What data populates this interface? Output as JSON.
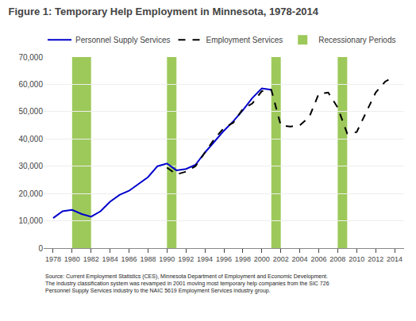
{
  "chart_data": {
    "type": "line",
    "title": "Figure 1: Temporary Help Employment in Minnesota, 1978-2014",
    "source": "Source: Current Employment Statistics (CES), Minnesota Department of Employment and Economic Development.\nThe industry classification system was revamped in 2001 moving most temporary help companies from the SIC 726\nPersonnel Supply Services industry to the NAIC 5619 Employment Services industry group.",
    "x": [
      1978,
      1979,
      1980,
      1981,
      1982,
      1983,
      1984,
      1985,
      1986,
      1987,
      1988,
      1989,
      1990,
      1991,
      1992,
      1993,
      1994,
      1995,
      1996,
      1997,
      1998,
      1999,
      2000,
      2001,
      2002,
      2003,
      2004,
      2005,
      2006,
      2007,
      2008,
      2009,
      2010,
      2011,
      2012,
      2013,
      2014
    ],
    "series": [
      {
        "name": "Personnel Supply Services",
        "color": "#0000CC",
        "line_style": "solid",
        "values": [
          11000,
          13500,
          14000,
          12500,
          11500,
          13500,
          17000,
          19500,
          21000,
          23500,
          26000,
          30000,
          31000,
          28500,
          29000,
          30500,
          35000,
          39000,
          43000,
          46500,
          50500,
          55000,
          58500,
          58000,
          null,
          null,
          null,
          null,
          null,
          null,
          null,
          null,
          null,
          null,
          null,
          null,
          null
        ]
      },
      {
        "name": "Employment Services",
        "color": "#000000",
        "line_style": "dashed",
        "values": [
          null,
          null,
          null,
          null,
          null,
          null,
          null,
          null,
          null,
          null,
          null,
          null,
          29500,
          27000,
          28000,
          30000,
          35000,
          40000,
          44000,
          46000,
          51000,
          53000,
          57500,
          58000,
          45000,
          44500,
          45000,
          48000,
          56500,
          57000,
          51500,
          42000,
          42500,
          50000,
          57000,
          61000,
          63000
        ]
      }
    ],
    "recession_periods": {
      "name": "Recessionary Periods",
      "color": "#9DC95A",
      "ranges": [
        [
          1980,
          1982
        ],
        [
          1990,
          1991
        ],
        [
          2001,
          2002
        ],
        [
          2008,
          2009
        ]
      ]
    },
    "xlim": [
      1977,
      2015
    ],
    "xticks": [
      1978,
      1980,
      1982,
      1984,
      1986,
      1988,
      1990,
      1992,
      1994,
      1996,
      1998,
      2000,
      2002,
      2004,
      2006,
      2008,
      2010,
      2012,
      2014
    ],
    "ylim": [
      0,
      70000
    ],
    "yticks": [
      0,
      {
        "value": 10000,
        "label": "10,000"
      },
      {
        "value": 20000,
        "label": "20,000"
      },
      {
        "value": 30000,
        "label": "30,000"
      },
      {
        "value": 40000,
        "label": "40,000"
      },
      {
        "value": 50000,
        "label": "50,000"
      },
      {
        "value": 60000,
        "label": "60,000"
      },
      {
        "value": 70000,
        "label": "70,000"
      }
    ],
    "grid": "y"
  }
}
